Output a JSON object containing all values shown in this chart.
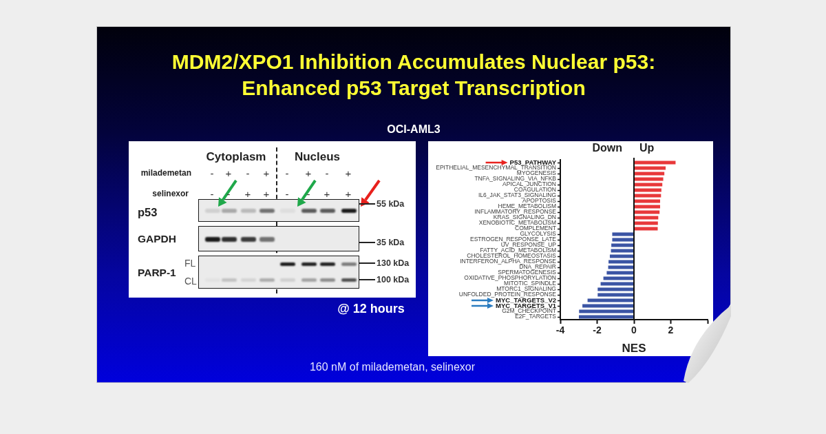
{
  "chart_data": [
    {
      "type": "other",
      "title": "MDM2/XPO1 Inhibition Accumulates Nuclear p53: Enhanced p53 Target Transcription",
      "subtitle": "OCI-AML3",
      "annotations": [
        "Cytoplasm",
        "Nucleus",
        "milademetan",
        "selinexor",
        "-",
        "+",
        "-",
        "+",
        "-",
        "+",
        "-",
        "+",
        "-",
        "-",
        "+",
        "+",
        "-",
        "-",
        "+",
        "+",
        "p53",
        "GAPDH",
        "PARP-1",
        "FL",
        "CL",
        "55 kDa",
        "35 kDa",
        "130 kDa",
        "100 kDa",
        "@ 12 hours",
        "160 nM of milademetan, selinexor"
      ]
    },
    {
      "type": "bar",
      "orientation": "horizontal",
      "categories": [
        "P53_PATHWAY",
        "EPITHELIAL_MESENCHYMAL_TRANSITION",
        "MYOGENESIS",
        "TNFA_SIGNALING_VIA_NFKB",
        "APICAL_JUNCTION",
        "COAGULATION",
        "IL6_JAK_STAT3_SIGNALING",
        "APOPTOSIS",
        "HEME_METABOLISM",
        "INFLAMMATORY_RESPONSE",
        "KRAS_SIGNALING_DN",
        "XENOBIOTIC_METABOLISM",
        "COMPLEMENT",
        "GLYCOLYSIS",
        "ESTROGEN_RESPONSE_LATE",
        "UV_RESPONSE_UP",
        "FATTY_ACID_METABOLISM",
        "CHOLESTEROL_HOMEOSTASIS",
        "INTERFERON_ALPHA_RESPONSE",
        "DNA_REPAIR",
        "SPERMATOGENESIS",
        "OXIDATIVE_PHOSPHORYLATION",
        "MITOTIC_SPINDLE",
        "MTORC1_SIGNALING",
        "UNFOLDED_PROTEIN_RESPONSE",
        "MYC_TARGETS_V2",
        "MYC_TARGETS_V1",
        "G2M_CHECKPOINT",
        "E2F_TARGETS"
      ],
      "values": [
        2.26,
        1.72,
        1.65,
        1.59,
        1.54,
        1.49,
        1.47,
        1.42,
        1.42,
        1.39,
        1.32,
        1.3,
        1.29,
        -1.18,
        -1.18,
        -1.23,
        -1.25,
        -1.31,
        -1.38,
        -1.4,
        -1.48,
        -1.66,
        -1.81,
        -1.97,
        -1.97,
        -2.52,
        -2.8,
        -2.98,
        -2.99
      ],
      "colors": [
        "#e8383a",
        "#e8383a",
        "#e8383a",
        "#e8383a",
        "#e8383a",
        "#e8383a",
        "#e8383a",
        "#e8383a",
        "#e8383a",
        "#e8383a",
        "#e8383a",
        "#e8383a",
        "#e8383a",
        "#3b54a4",
        "#3b54a4",
        "#3b54a4",
        "#3b54a4",
        "#3b54a4",
        "#3b54a4",
        "#3b54a4",
        "#3b54a4",
        "#3b54a4",
        "#3b54a4",
        "#3b54a4",
        "#3b54a4",
        "#3b54a4",
        "#3b54a4",
        "#3b54a4",
        "#3b54a4"
      ],
      "xlim": [
        -4,
        4
      ],
      "xticks": [
        -4,
        -2,
        0,
        2,
        {
          "value": 4,
          "label": null
        }
      ],
      "xlabel": "NES",
      "annotations": [
        "Down",
        "Up"
      ],
      "ref_lines": [
        {
          "axis": "x",
          "value": 0
        }
      ]
    }
  ]
}
